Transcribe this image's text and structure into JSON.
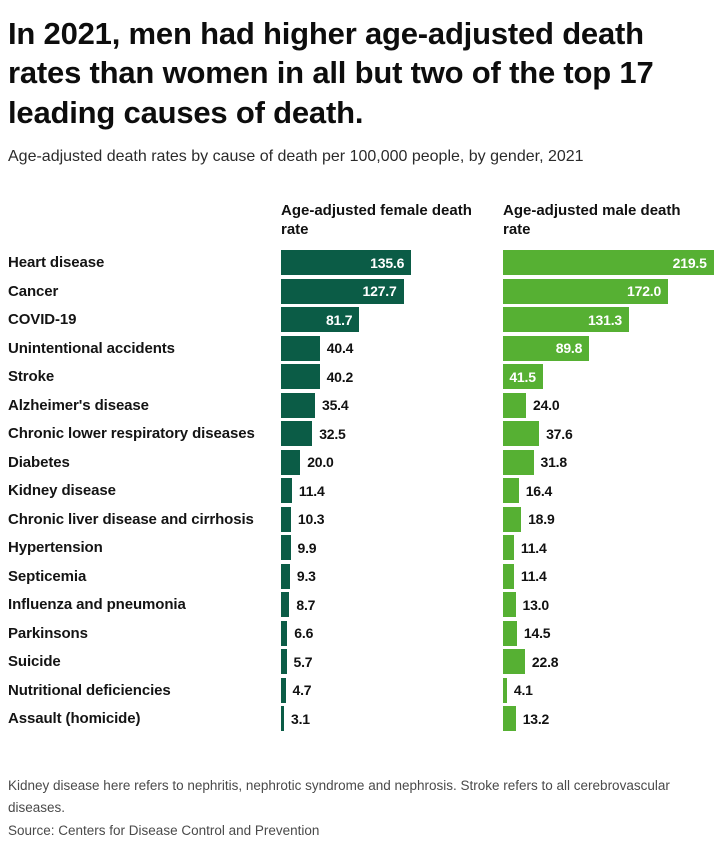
{
  "header": {
    "title": "In 2021, men had higher age-adjusted death rates than women in all but two of the top 17 leading causes of death.",
    "subtitle": "Age-adjusted death rates by cause of death per 100,000 people, by gender, 2021"
  },
  "chart_data": {
    "type": "bar",
    "orientation": "horizontal",
    "title": "Age-adjusted death rates by cause of death per 100,000 people, by gender, 2021",
    "categories": [
      "Heart disease",
      "Cancer",
      "COVID-19",
      "Unintentional accidents",
      "Stroke",
      "Alzheimer's disease",
      "Chronic lower respiratory diseases",
      "Diabetes",
      "Kidney disease",
      "Chronic liver disease and cirrhosis",
      "Hypertension",
      "Septicemia",
      "Influenza and pneumonia",
      "Parkinsons",
      "Suicide",
      "Nutritional deficiencies",
      "Assault (homicide)"
    ],
    "series": [
      {
        "name": "Age-adjusted female death rate",
        "color": "#0b5c46",
        "values": [
          135.6,
          127.7,
          81.7,
          40.4,
          40.2,
          35.4,
          32.5,
          20.0,
          11.4,
          10.3,
          9.9,
          9.3,
          8.7,
          6.6,
          5.7,
          4.7,
          3.1
        ]
      },
      {
        "name": "Age-adjusted male death rate",
        "color": "#56b033",
        "values": [
          219.5,
          172.0,
          131.3,
          89.8,
          41.5,
          24.0,
          37.6,
          31.8,
          16.4,
          18.9,
          11.4,
          11.4,
          13.0,
          14.5,
          22.8,
          4.1,
          13.2
        ]
      }
    ],
    "value_labels": "one_decimal",
    "xlim": [
      0,
      225
    ],
    "grid": false,
    "legend_position": "column-headers"
  },
  "footer": {
    "note": "Kidney disease here refers to nephritis, nephrotic syndrome and nephrosis. Stroke refers to all cerebrovascular diseases.",
    "source": "Source: Centers for Disease Control and Prevention"
  },
  "colors": {
    "female_bar": "#0b5c46",
    "male_bar": "#56b033",
    "background": "#ffffff"
  }
}
